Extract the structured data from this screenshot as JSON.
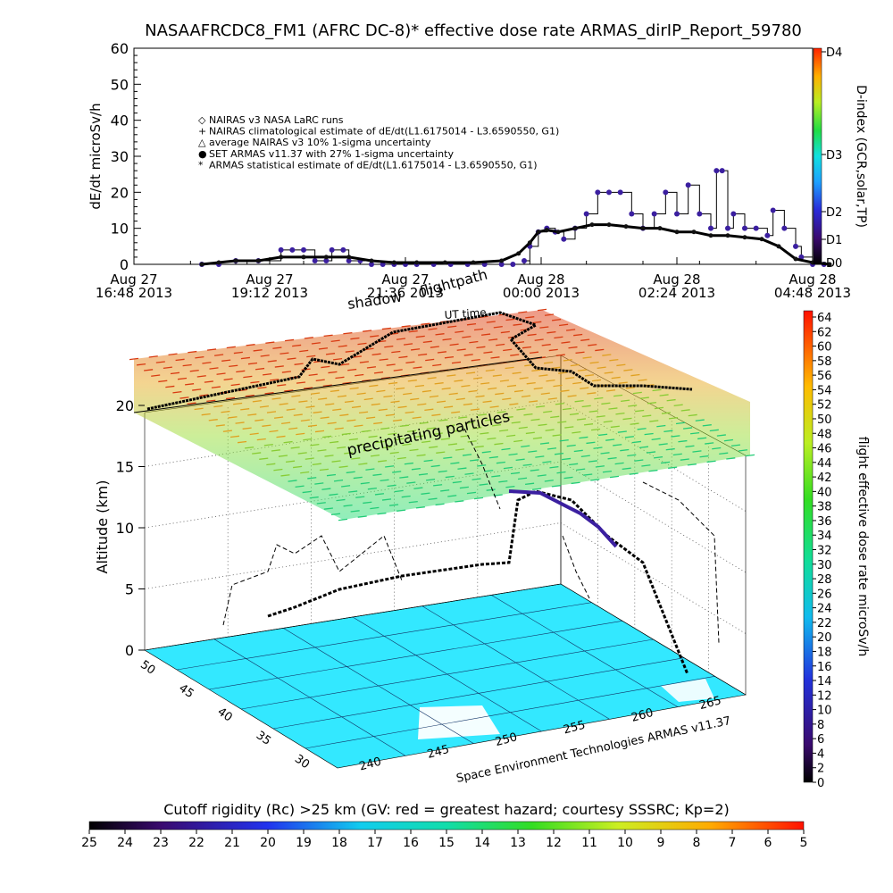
{
  "title": "NASAAFRCDC8_FM1 (AFRC DC-8)* effective dose rate ARMAS_dirIP_Report_59780",
  "colors": {
    "armas_marker": "#3b1fa0",
    "dark_marker": "#111111",
    "frame": "#000000"
  },
  "chart_data": [
    {
      "type": "line",
      "title": "NASAAFRCDC8_FM1 (AFRC DC-8)* effective dose rate ARMAS_dirIP_Report_59780",
      "ylabel": "dE/dt microSv/h",
      "ylim": [
        0,
        60
      ],
      "y_ticks": [
        "0",
        "10",
        "20",
        "30",
        "40",
        "50",
        "60"
      ],
      "x_range": [
        "2013-08-27 16:48",
        "2013-08-28 04:48"
      ],
      "x_ticks": [
        {
          "l1": "Aug 27",
          "l2": "16:48 2013"
        },
        {
          "l1": "Aug 27",
          "l2": "19:12 2013"
        },
        {
          "l1": "Aug 27",
          "l2": "21:36 2013"
        },
        {
          "l1": "Aug 28",
          "l2": "00:00 2013"
        },
        {
          "l1": "Aug 28",
          "l2": "02:24 2013"
        },
        {
          "l1": "Aug 28",
          "l2": "04:48 2013"
        }
      ],
      "right_axis": {
        "label": "D-index (GCR,solar,TP)",
        "ticks": [
          "D4",
          "D3",
          "D2",
          "D1",
          "D0"
        ]
      },
      "legend": [
        "NAIRAS v3 NASA LaRC runs",
        "NAIRAS climatological estimate of dE/dt(L1.6175014 - L3.6590550, G1)",
        "average NAIRAS v3 10% 1-sigma uncertainty",
        "SET ARMAS v11.37 with 27% 1-sigma uncertainty",
        "ARMAS statistical estimate of dE/dt(L1.6175014 - L3.6590550, G1)"
      ],
      "series": [
        {
          "name": "SET ARMAS v11.37 with 27% 1-sigma uncertainty",
          "x": [
            1.2,
            1.5,
            1.8,
            2.2,
            2.6,
            2.8,
            3.0,
            3.2,
            3.4,
            3.5,
            3.7,
            3.8,
            4.0,
            4.2,
            4.4,
            4.6,
            4.8,
            5.0,
            5.3,
            5.6,
            5.9,
            6.2,
            6.5,
            6.7,
            6.9,
            7.0,
            7.15,
            7.3,
            7.45,
            7.6,
            7.8,
            8.0,
            8.2,
            8.4,
            8.6,
            8.8,
            9.0,
            9.2,
            9.4,
            9.6,
            9.8,
            10.0,
            10.2,
            10.3,
            10.4,
            10.5,
            10.6,
            10.8,
            11.0,
            11.2,
            11.3,
            11.5,
            11.7,
            11.8,
            12.0,
            12.2
          ],
          "y": [
            0,
            0,
            1,
            1,
            4,
            4,
            4,
            1,
            1,
            4,
            4,
            1,
            1,
            0,
            0,
            0,
            0,
            0,
            0,
            0,
            0,
            0,
            0,
            0,
            1,
            5,
            9,
            10,
            9,
            7,
            10,
            14,
            20,
            20,
            20,
            14,
            10,
            14,
            20,
            14,
            22,
            14,
            10,
            26,
            26,
            10,
            14,
            10,
            10,
            8,
            15,
            10,
            5,
            2,
            0,
            0
          ]
        },
        {
          "name": "ARMAS statistical estimate of dE/dt(L1.6175014 - L3.6590550, G1)",
          "x": [
            1.2,
            1.5,
            1.8,
            2.2,
            2.6,
            3.0,
            3.4,
            3.8,
            4.2,
            4.6,
            5.0,
            5.5,
            6.0,
            6.5,
            6.8,
            7.0,
            7.15,
            7.3,
            7.5,
            7.8,
            8.1,
            8.4,
            8.7,
            9.0,
            9.3,
            9.6,
            9.9,
            10.2,
            10.5,
            10.8,
            11.1,
            11.4,
            11.7,
            12.0,
            12.3
          ],
          "y": [
            0,
            0.5,
            1,
            1,
            2,
            2,
            2,
            2,
            1,
            0.5,
            0.5,
            0.5,
            0.5,
            1,
            3,
            6,
            9,
            9.5,
            9,
            10,
            11,
            11,
            10.5,
            10,
            10,
            9,
            9,
            8,
            8,
            7.5,
            7,
            5,
            1.5,
            0.5,
            0
          ]
        }
      ]
    },
    {
      "type": "scatter",
      "zlabel": "Altitude (km)",
      "zlim": [
        0,
        20
      ],
      "z_ticks": [
        "0",
        "5",
        "10",
        "15",
        "20"
      ],
      "lat_ticks": [
        "50",
        "45",
        "40",
        "35",
        "30"
      ],
      "lon_ticks": [
        "240",
        "245",
        "250",
        "255",
        "260",
        "265"
      ],
      "annotations": [
        "flightpath",
        "shadow",
        "UT time",
        "precipitating particles"
      ],
      "credit": "Space Environment Technologies ARMAS v11.37",
      "colorbar_right": {
        "label": "flight effective dose rate microSv/h",
        "ticks": [
          "64",
          "62",
          "60",
          "58",
          "56",
          "54",
          "52",
          "50",
          "48",
          "46",
          "44",
          "42",
          "40",
          "38",
          "36",
          "34",
          "32",
          "30",
          "28",
          "26",
          "24",
          "22",
          "20",
          "18",
          "16",
          "14",
          "12",
          "10",
          "8",
          "6",
          "4",
          "2",
          "0"
        ]
      },
      "colorbar_bottom": {
        "label": "Cutoff rigidity (Rc) >25 km (GV: red = greatest hazard; courtesy SSSRC; Kp=2)",
        "ticks": [
          "25",
          "24",
          "23",
          "22",
          "21",
          "20",
          "19",
          "18",
          "17",
          "16",
          "15",
          "14",
          "13",
          "12",
          "11",
          "10",
          "9",
          "8",
          "7",
          "6",
          "5"
        ]
      }
    }
  ]
}
